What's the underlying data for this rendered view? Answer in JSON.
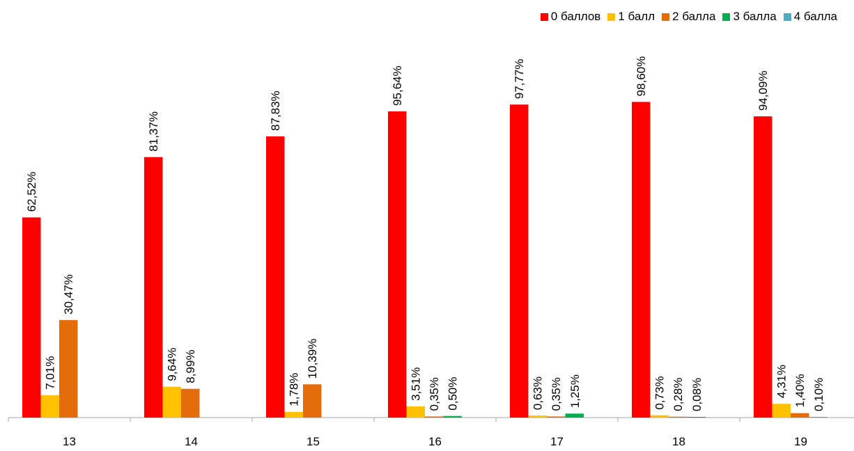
{
  "chart_data": {
    "type": "bar",
    "categories": [
      "13",
      "14",
      "15",
      "16",
      "17",
      "18",
      "19"
    ],
    "series": [
      {
        "name": "0 баллов",
        "color": "#ff0000",
        "values": [
          62.52,
          81.37,
          87.83,
          95.64,
          97.77,
          98.6,
          94.09
        ],
        "labels": [
          "62,52%",
          "81,37%",
          "87,83%",
          "95,64%",
          "97,77%",
          "98,60%",
          "94,09%"
        ]
      },
      {
        "name": "1 балл",
        "color": "#ffc000",
        "values": [
          7.01,
          9.64,
          1.78,
          3.51,
          0.63,
          0.73,
          4.31
        ],
        "labels": [
          "7,01%",
          "9,64%",
          "1,78%",
          "3,51%",
          "0,63%",
          "0,73%",
          "4,31%"
        ]
      },
      {
        "name": "2 балла",
        "color": "#e46c0a",
        "values": [
          30.47,
          8.99,
          10.39,
          0.35,
          0.35,
          0.28,
          1.4
        ],
        "labels": [
          "30,47%",
          "8,99%",
          "10,39%",
          "0,35%",
          "0,35%",
          "0,28%",
          "1,40%"
        ]
      },
      {
        "name": "3 балла",
        "color": "#00b050",
        "values": [
          null,
          null,
          null,
          0.5,
          1.25,
          0.08,
          null
        ],
        "labels": [
          null,
          null,
          null,
          "0,50%",
          "1,25%",
          "0,08%",
          null
        ]
      },
      {
        "name": "4 балла",
        "color": "#4bacc6",
        "values": [
          null,
          null,
          null,
          null,
          null,
          null,
          0.1
        ],
        "labels": [
          null,
          null,
          null,
          null,
          null,
          null,
          "0,10%"
        ]
      }
    ],
    "ylim": [
      0,
      100
    ],
    "grid": false,
    "legend_position": "top-right"
  }
}
